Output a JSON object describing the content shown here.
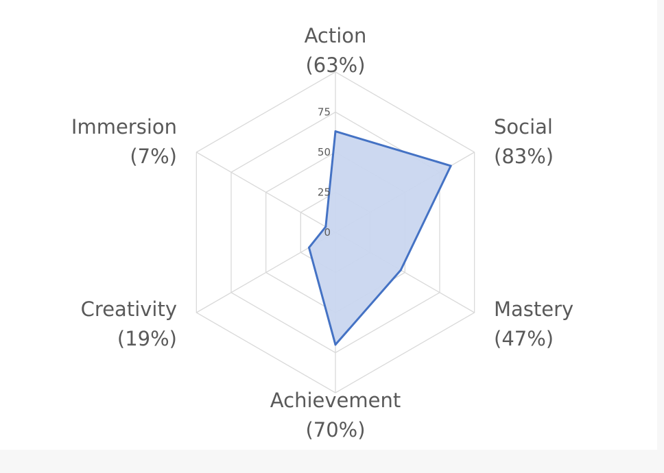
{
  "chart_data": {
    "type": "radar",
    "title": "",
    "categories": [
      {
        "name": "Action",
        "pct_label": "(63%)"
      },
      {
        "name": "Social",
        "pct_label": "(83%)"
      },
      {
        "name": "Mastery",
        "pct_label": "(47%)"
      },
      {
        "name": "Achievement",
        "pct_label": "(70%)"
      },
      {
        "name": "Creativity",
        "pct_label": "(19%)"
      },
      {
        "name": "Immersion",
        "pct_label": "(7%)"
      }
    ],
    "series": [
      {
        "values": [
          63,
          83,
          47,
          70,
          19,
          7
        ]
      }
    ],
    "radial_ticks": [
      0,
      25,
      50,
      75
    ],
    "range": [
      0,
      100
    ],
    "gridlines": true,
    "legend": "none",
    "colors": {
      "series_line": "#4472c4",
      "series_fill": "#c9d6ef",
      "grid": "#d9d9d9",
      "text": "#595959"
    }
  }
}
